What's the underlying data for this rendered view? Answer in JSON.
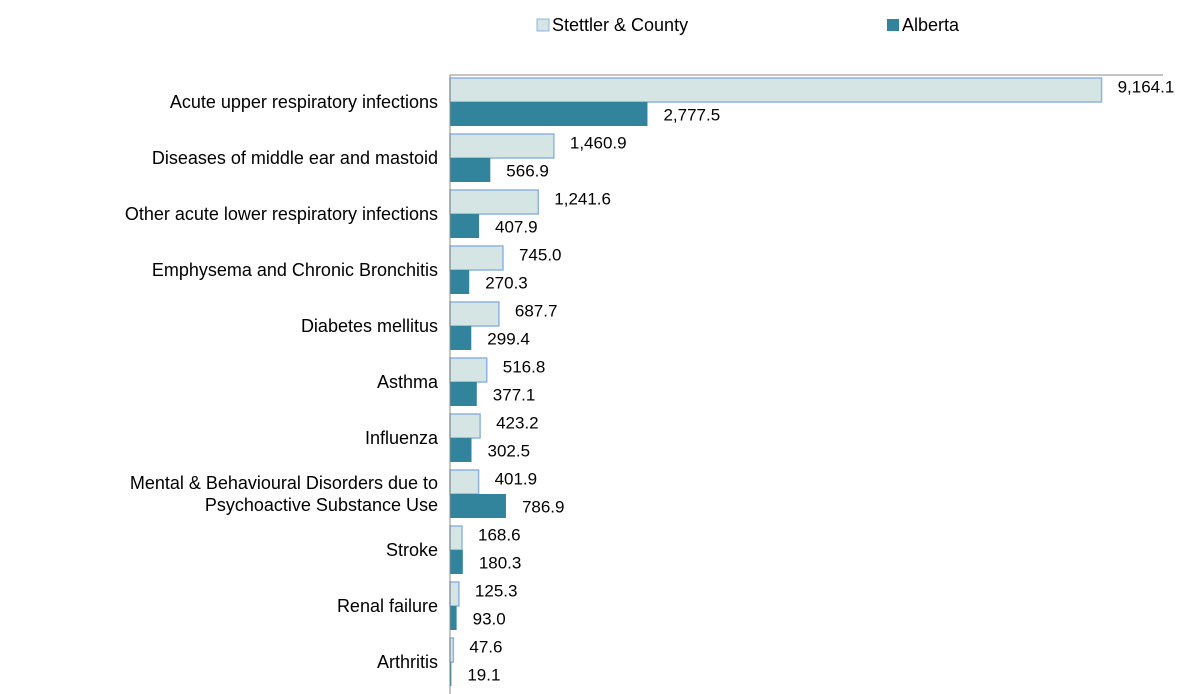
{
  "chart_data": {
    "type": "bar",
    "orientation": "horizontal",
    "categories": [
      "Acute upper respiratory infections",
      "Diseases of middle ear and mastoid",
      "Other acute lower respiratory infections",
      "Emphysema and Chronic Bronchitis",
      "Diabetes mellitus",
      "Asthma",
      "Influenza",
      "Mental & Behavioural Disorders due to\nPsychoactive Substance Use",
      "Stroke",
      "Renal failure",
      "Arthritis"
    ],
    "series": [
      {
        "name": "Stettler & County",
        "color": "#d5e5e3",
        "edge": "#8eb4e3",
        "values": [
          9164.1,
          1460.9,
          1241.6,
          745.0,
          687.7,
          516.8,
          423.2,
          401.9,
          168.6,
          125.3,
          47.6
        ],
        "value_labels": [
          "9,164.1",
          "1,460.9",
          "1,241.6",
          "745.0",
          "687.7",
          "516.8",
          "423.2",
          "401.9",
          "168.6",
          "125.3",
          "47.6"
        ]
      },
      {
        "name": "Alberta",
        "color": "#31849b",
        "values": [
          2777.5,
          566.9,
          407.9,
          270.3,
          299.4,
          377.1,
          302.5,
          786.9,
          180.3,
          93.0,
          19.1
        ],
        "value_labels": [
          "2,777.5",
          "566.9",
          "407.9",
          "270.3",
          "299.4",
          "377.1",
          "302.5",
          "786.9",
          "180.3",
          "93.0",
          "19.1"
        ]
      }
    ],
    "xlim": [
      0,
      10000
    ],
    "legend": "top"
  }
}
